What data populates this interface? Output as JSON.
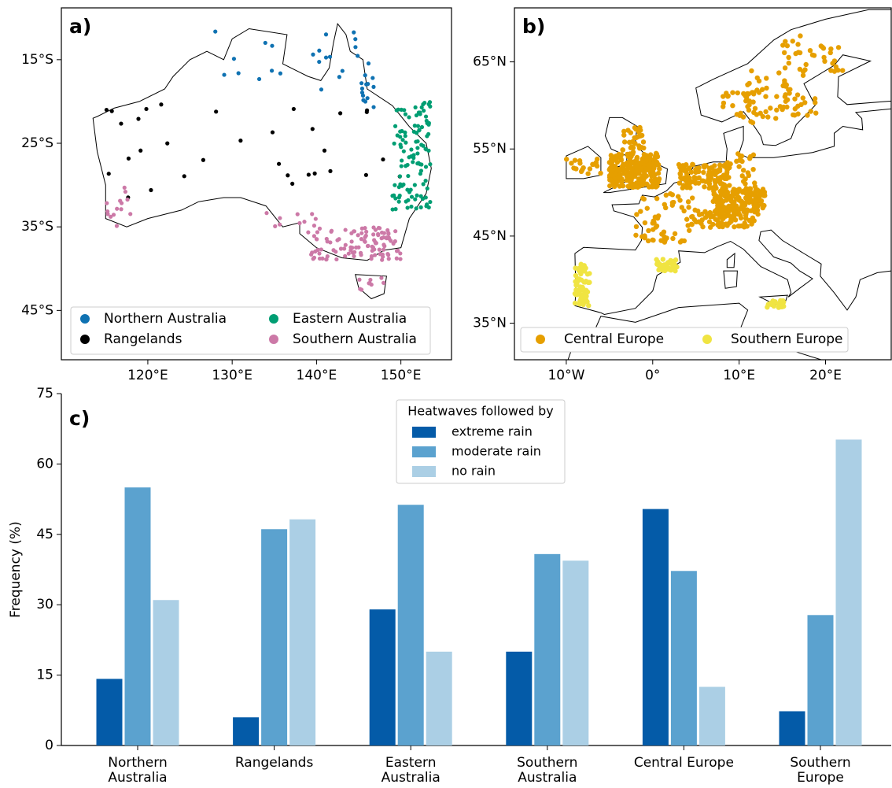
{
  "chart_data": [
    {
      "type": "map",
      "label": "a)",
      "xlim": [
        109.75,
        156
      ],
      "ylim": [
        -50.9,
        -8.8
      ],
      "xticks": [
        {
          "value": 120,
          "label": "120°E"
        },
        {
          "value": 130,
          "label": "130°E"
        },
        {
          "value": 140,
          "label": "140°E"
        },
        {
          "value": 150,
          "label": "150°E"
        }
      ],
      "yticks": [
        {
          "value": -15,
          "label": "15°S"
        },
        {
          "value": -25,
          "label": "25°S"
        },
        {
          "value": -35,
          "label": "35°S"
        },
        {
          "value": -45,
          "label": "45°S"
        }
      ],
      "series": [
        {
          "name": "Northern Australia",
          "color": "#0f72b2"
        },
        {
          "name": "Rangelands",
          "color": "#000000"
        },
        {
          "name": "Eastern Australia",
          "color": "#009e73"
        },
        {
          "name": "Southern Australia",
          "color": "#cc79a7"
        }
      ]
    },
    {
      "type": "map",
      "label": "b)",
      "xlim": [
        -16,
        27.6
      ],
      "ylim": [
        30.8,
        71.2
      ],
      "xticks": [
        {
          "value": -10,
          "label": "10°W"
        },
        {
          "value": 0,
          "label": "0°"
        },
        {
          "value": 10,
          "label": "10°E"
        },
        {
          "value": 20,
          "label": "20°E"
        }
      ],
      "yticks": [
        {
          "value": 65,
          "label": "65°N"
        },
        {
          "value": 55,
          "label": "55°N"
        },
        {
          "value": 45,
          "label": "45°N"
        },
        {
          "value": 35,
          "label": "35°N"
        }
      ],
      "series": [
        {
          "name": "Central Europe",
          "color": "#e69f00"
        },
        {
          "name": "Southern Europe",
          "color": "#f0e442"
        }
      ]
    },
    {
      "type": "bar",
      "label": "c)",
      "ylabel": "Frequency (%)",
      "legend_title": "Heatwaves followed by",
      "categories": [
        "Northern Australia",
        "Rangelands",
        "Eastern Australia",
        "Southern Australia",
        "Central Europe",
        "Southern Europe"
      ],
      "series": [
        {
          "name": "extreme rain",
          "color": "#045ba8",
          "values": [
            14.2,
            6,
            29,
            20,
            50.4,
            7.3
          ]
        },
        {
          "name": "moderate rain",
          "color": "#5ba2cf",
          "values": [
            55,
            46.1,
            51.3,
            40.8,
            37.2,
            27.8
          ]
        },
        {
          "name": "no rain",
          "color": "#abcfe5",
          "values": [
            31,
            48.2,
            20,
            39.4,
            12.5,
            65.2
          ]
        }
      ],
      "ylim": [
        0,
        75
      ],
      "yticks": [
        0,
        15,
        30,
        45,
        60,
        75
      ]
    }
  ]
}
